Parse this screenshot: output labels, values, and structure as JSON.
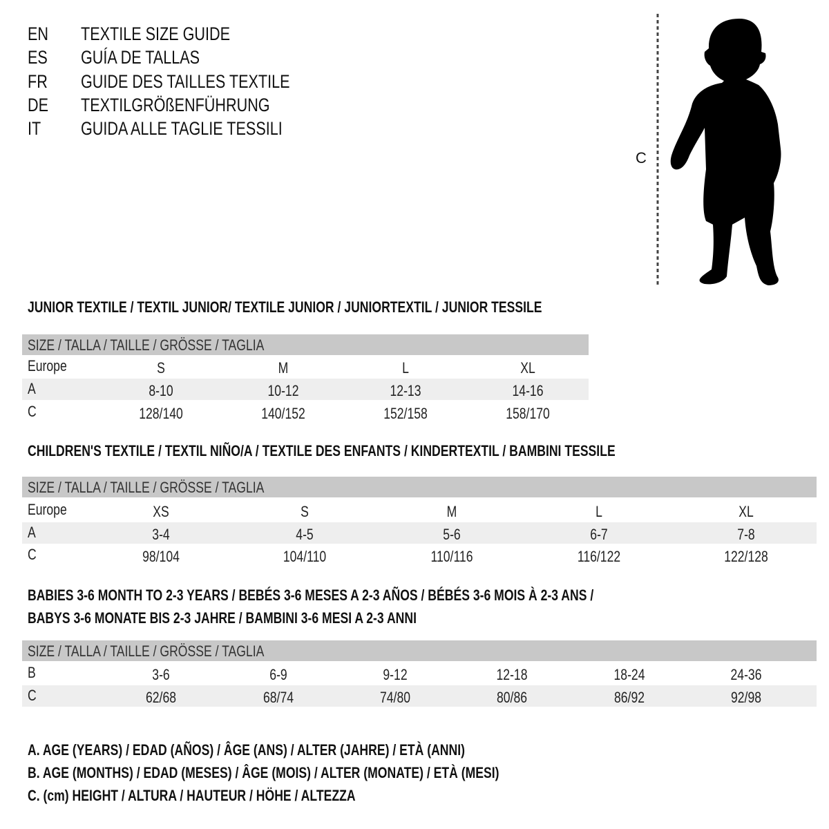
{
  "header": [
    {
      "code": "EN",
      "title": "TEXTILE SIZE GUIDE"
    },
    {
      "code": "ES",
      "title": "GUÍA DE TALLAS"
    },
    {
      "code": "FR",
      "title": "GUIDE DES TAILLES TEXTILE"
    },
    {
      "code": "DE",
      "title": "TEXTILGRÖßENFÜHRUNG"
    },
    {
      "code": "IT",
      "title": "GUIDA ALLE TAGLIE TESSILI"
    }
  ],
  "figure": {
    "measure_label": "C",
    "icon": "child-silhouette"
  },
  "junior": {
    "heading": "JUNIOR TEXTILE / TEXTIL JUNIOR/ TEXTILE JUNIOR / JUNIORTEXTIL / JUNIOR TESSILE",
    "size_header": "SIZE / TALLA / TAILLE / GRÖSSE / TAGLIA",
    "rows": [
      {
        "label": "Europe",
        "values": [
          "S",
          "M",
          "L",
          "XL"
        ]
      },
      {
        "label": "A",
        "values": [
          "8-10",
          "10-12",
          "12-13",
          "14-16"
        ]
      },
      {
        "label": "C",
        "values": [
          "128/140",
          "140/152",
          "152/158",
          "158/170"
        ]
      }
    ]
  },
  "children": {
    "heading": "CHILDREN'S TEXTILE / TEXTIL NIÑO/A / TEXTILE DES ENFANTS / KINDERTEXTIL / BAMBINI TESSILE",
    "size_header": "SIZE / TALLA / TAILLE / GRÖSSE / TAGLIA",
    "rows": [
      {
        "label": "Europe",
        "values": [
          "XS",
          "S",
          "M",
          "L",
          "XL"
        ]
      },
      {
        "label": "A",
        "values": [
          "3-4",
          "4-5",
          "5-6",
          "6-7",
          "7-8"
        ]
      },
      {
        "label": "C",
        "values": [
          "98/104",
          "104/110",
          "110/116",
          "116/122",
          "122/128"
        ]
      }
    ]
  },
  "babies": {
    "heading_line1": "BABIES 3-6 MONTH TO 2-3 YEARS / BEBÉS 3-6 MESES A 2-3 AÑOS / BÉBÉS 3-6 MOIS À 2-3 ANS /",
    "heading_line2": "BABYS 3-6 MONATE BIS 2-3 JAHRE / BAMBINI 3-6 MESI A 2-3 ANNI",
    "size_header": "SIZE / TALLA / TAILLE / GRÖSSE / TAGLIA",
    "rows": [
      {
        "label": "B",
        "values": [
          "3-6",
          "6-9",
          "9-12",
          "12-18",
          "18-24",
          "24-36"
        ]
      },
      {
        "label": "C",
        "values": [
          "62/68",
          "68/74",
          "74/80",
          "80/86",
          "86/92",
          "92/98"
        ]
      }
    ]
  },
  "legend": [
    "A. AGE (YEARS) / EDAD (AÑOS) / ÂGE (ANS) / ALTER (JAHRE) / ETÀ (ANNI)",
    "B. AGE (MONTHS) / EDAD (MESES) / ÂGE (MOIS) / ALTER (MONATE) / ETÀ (MESI)",
    "C. (cm) HEIGHT / ALTURA / HAUTEUR / HÖHE / ALTEZZA"
  ]
}
